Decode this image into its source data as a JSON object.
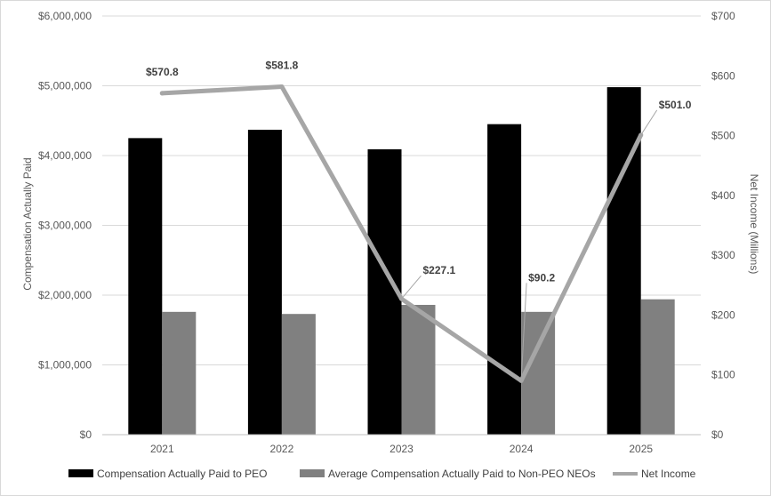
{
  "chart_data": {
    "type": "bar",
    "categories": [
      "2021",
      "2022",
      "2023",
      "2024",
      "2025"
    ],
    "series": [
      {
        "name": "Compensation Actually Paid to PEO",
        "kind": "bar",
        "axis": "left",
        "color": "#000000",
        "values": [
          4250000,
          4370000,
          4090000,
          4450000,
          4980000
        ]
      },
      {
        "name": "Average Compensation Actually Paid to Non-PEO NEOs",
        "kind": "bar",
        "axis": "left",
        "color": "#808080",
        "values": [
          1760000,
          1730000,
          1860000,
          1760000,
          1940000
        ]
      },
      {
        "name": "Net Income",
        "kind": "line",
        "axis": "right",
        "color": "#a6a6a6",
        "values": [
          570.8,
          581.8,
          227.1,
          90.2,
          501.0
        ],
        "labels": [
          "$570.8",
          "$581.8",
          "$227.1",
          "$90.2",
          "$501.0"
        ]
      }
    ],
    "ylabel": "Compensation Actually Paid",
    "y2label": "Net Income (Millions)",
    "ylim": [
      0,
      6000000
    ],
    "y2lim": [
      0,
      700
    ],
    "yticks": [
      "$0",
      "$1,000,000",
      "$2,000,000",
      "$3,000,000",
      "$4,000,000",
      "$5,000,000",
      "$6,000,000"
    ],
    "y2ticks": [
      "$0",
      "$100",
      "$200",
      "$300",
      "$400",
      "$500",
      "$600",
      "$700"
    ],
    "grid": true,
    "legend_position": "bottom"
  }
}
